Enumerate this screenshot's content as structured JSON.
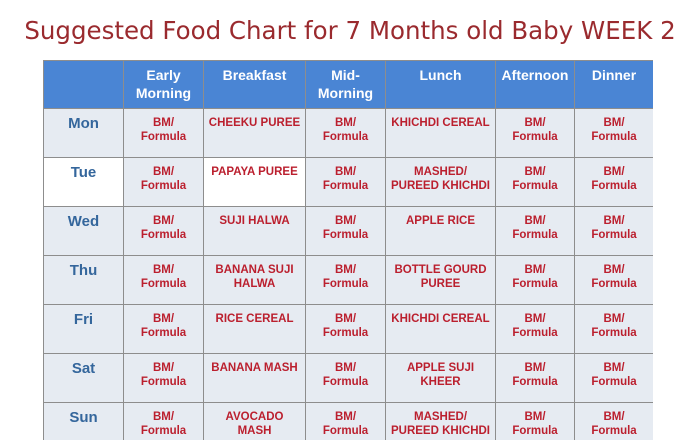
{
  "title": "Suggested Food Chart for 7 Months old Baby WEEK 2",
  "columns": [
    "",
    "Early\nMorning",
    "Breakfast",
    "Mid-\nMorning",
    "Lunch",
    "Afternoon",
    "Dinner"
  ],
  "rows": [
    {
      "day": "Mon",
      "early_morning": "BM/\nFormula",
      "breakfast": "CHEEKU PUREE",
      "mid_morning": "BM/\nFormula",
      "lunch": "KHICHDI CEREAL",
      "afternoon": "BM/\nFormula",
      "dinner": "BM/\nFormula"
    },
    {
      "day": "Tue",
      "early_morning": "BM/\nFormula",
      "breakfast": "PAPAYA PUREE",
      "mid_morning": "BM/\nFormula",
      "lunch": "MASHED/\nPUREED KHICHDI",
      "afternoon": "BM/\nFormula",
      "dinner": "BM/\nFormula"
    },
    {
      "day": "Wed",
      "early_morning": "BM/\nFormula",
      "breakfast": "SUJI HALWA",
      "mid_morning": "BM/\nFormula",
      "lunch": "APPLE RICE",
      "afternoon": "BM/\nFormula",
      "dinner": "BM/\nFormula"
    },
    {
      "day": "Thu",
      "early_morning": "BM/\nFormula",
      "breakfast": "BANANA SUJI\nHALWA",
      "mid_morning": "BM/\nFormula",
      "lunch": "BOTTLE GOURD\nPUREE",
      "afternoon": "BM/\nFormula",
      "dinner": "BM/\nFormula"
    },
    {
      "day": "Fri",
      "early_morning": "BM/\nFormula",
      "breakfast": "RICE CEREAL",
      "mid_morning": "BM/\nFormula",
      "lunch": "KHICHDI CEREAL",
      "afternoon": "BM/\nFormula",
      "dinner": "BM/\nFormula"
    },
    {
      "day": "Sat",
      "early_morning": "BM/\nFormula",
      "breakfast": "BANANA MASH",
      "mid_morning": "BM/\nFormula",
      "lunch": "APPLE SUJI\nKHEER",
      "afternoon": "BM/\nFormula",
      "dinner": "BM/\nFormula"
    },
    {
      "day": "Sun",
      "early_morning": "BM/\nFormula",
      "breakfast": "AVOCADO\nMASH",
      "mid_morning": "BM/\nFormula",
      "lunch": "MASHED/\nPUREED KHICHDI",
      "afternoon": "BM/\nFormula",
      "dinner": "BM/\nFormula"
    }
  ],
  "colors": {
    "title": "#9a2a2e",
    "header_bg": "#4a85d4",
    "header_text": "#ffffff",
    "cell_bg": "#e6ebf2",
    "cell_text": "#bb1f2e",
    "day_text": "#34669c",
    "border": "#8d8d8d"
  }
}
